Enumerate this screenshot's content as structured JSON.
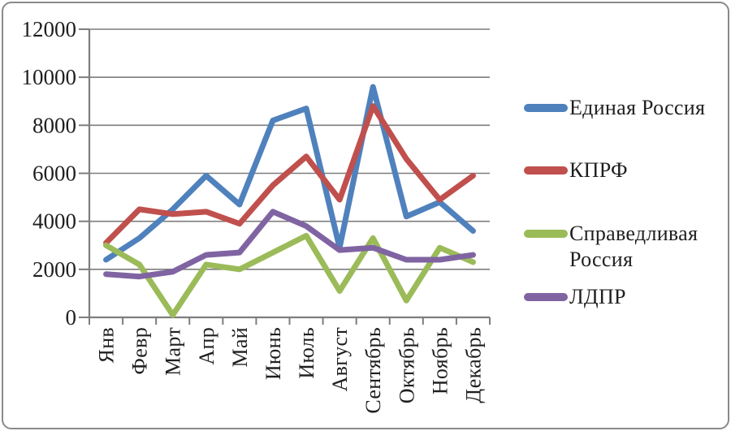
{
  "frame": {
    "background": "#ffffff",
    "border_color": "#8a8a8a"
  },
  "chart_data": {
    "type": "line",
    "title": "",
    "xlabel": "",
    "ylabel": "",
    "categories": [
      "Янв",
      "Февр",
      "Март",
      "Апр",
      "Май",
      "Июнь",
      "Июль",
      "Август",
      "Сентябрь",
      "Октябрь",
      "Ноябрь",
      "Декабрь"
    ],
    "series": [
      {
        "name": "Единая Россия",
        "color": "#4F81BD",
        "values": [
          2400,
          3300,
          4500,
          5900,
          4700,
          8200,
          8700,
          2900,
          9600,
          4200,
          4800,
          3600
        ]
      },
      {
        "name": "КПРФ",
        "color": "#C0504D",
        "values": [
          3100,
          4500,
          4300,
          4400,
          3900,
          5500,
          6700,
          4900,
          8800,
          6600,
          4900,
          5900
        ]
      },
      {
        "name": "Справедливая Россия",
        "color": "#9BBB59",
        "values": [
          3000,
          2200,
          100,
          2200,
          2000,
          2700,
          3400,
          1100,
          3300,
          700,
          2900,
          2300
        ]
      },
      {
        "name": "ЛДПР",
        "color": "#8064A2",
        "values": [
          1800,
          1700,
          1900,
          2600,
          2700,
          4400,
          3800,
          2800,
          2900,
          2400,
          2400,
          2600
        ]
      }
    ],
    "ylim": [
      0,
      12000
    ],
    "yticks": [
      0,
      2000,
      4000,
      6000,
      8000,
      10000,
      12000
    ],
    "grid": true,
    "grid_color": "#7d7d7d",
    "axis_color": "#7d7d7d",
    "tick_label_color": "#1f1f1f",
    "legend_position": "right",
    "line_width": 7
  }
}
